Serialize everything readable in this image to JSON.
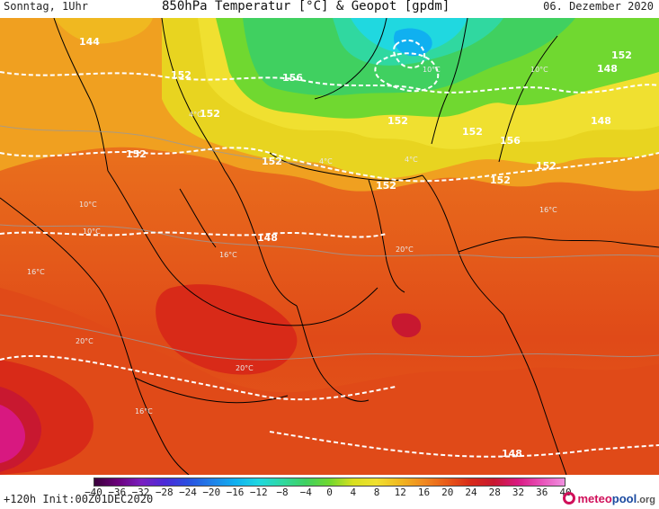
{
  "header": {
    "valid_day": "Sonntag, 1Uhr",
    "title": "850hPa Temperatur [°C] & Geopot [gpdm]",
    "date": "06. Dezember 2020"
  },
  "footer": {
    "run_info": "+120h Init:00Z01DEC2020",
    "logo_part1": "meteo",
    "logo_part2": "pool",
    "logo_part3": ".org"
  },
  "colorbar": {
    "ticks": [
      "−40",
      "−36",
      "−32",
      "−28",
      "−24",
      "−20",
      "−16",
      "−12",
      "−8",
      "−4",
      "0",
      "4",
      "8",
      "12",
      "16",
      "20",
      "24",
      "28",
      "32",
      "36",
      "40"
    ],
    "colors": [
      "#3a003a",
      "#6a007a",
      "#7a20c0",
      "#4a2ad8",
      "#2a50e0",
      "#2080e8",
      "#10b0f0",
      "#20d8e0",
      "#30d8a0",
      "#40d060",
      "#70d830",
      "#d8e020",
      "#f0e030",
      "#f0b820",
      "#f08a20",
      "#e85a18",
      "#d82a18",
      "#c81830",
      "#d81880",
      "#e850b8",
      "#f090e0"
    ]
  },
  "geopotential_labels": [
    {
      "text": "152"
    },
    {
      "text": "152"
    },
    {
      "text": "152"
    },
    {
      "text": "156"
    },
    {
      "text": "152"
    },
    {
      "text": "152"
    },
    {
      "text": "152"
    },
    {
      "text": "152"
    },
    {
      "text": "152"
    },
    {
      "text": "148"
    },
    {
      "text": "148"
    },
    {
      "text": "156"
    },
    {
      "text": "152"
    },
    {
      "text": "152"
    },
    {
      "text": "148"
    },
    {
      "text": "144"
    },
    {
      "text": "148"
    }
  ],
  "temperature_labels": [
    {
      "text": "10°C"
    },
    {
      "text": "16°C"
    },
    {
      "text": "20°C"
    },
    {
      "text": "20°C"
    },
    {
      "text": "16°C"
    },
    {
      "text": "10°C"
    },
    {
      "text": "4°C"
    },
    {
      "text": "16°C"
    },
    {
      "text": "4°C"
    },
    {
      "text": "10°C"
    },
    {
      "text": "16°C"
    },
    {
      "text": "10°C"
    },
    {
      "text": "4°C"
    },
    {
      "text": "20°C"
    }
  ]
}
